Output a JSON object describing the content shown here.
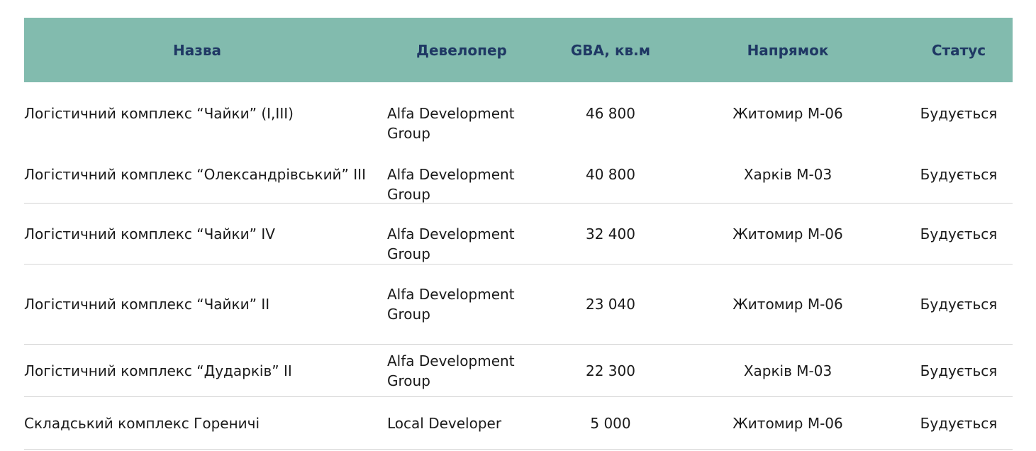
{
  "table": {
    "headers": [
      "Назва",
      "Девелопер",
      "GBA, кв.м",
      "Напрямок",
      "Статус"
    ],
    "rows": [
      {
        "name": "Логістичний комплекс “Чайки” (I,III)",
        "developer": "Alfa Development Group",
        "gba": "46 800",
        "direction": "Житомир М-06",
        "status": "Будується"
      },
      {
        "name": "Логістичний комплекс “Олександрівський” III",
        "developer": "Alfa Development Group",
        "gba": "40 800",
        "direction": "Харків М-03",
        "status": "Будується"
      },
      {
        "name": "Логістичний комплекс “Чайки” IV",
        "developer": "Alfa Development Group",
        "gba": "32 400",
        "direction": "Житомир М-06",
        "status": "Будується"
      },
      {
        "name": "Логістичний комплекс “Чайки” II",
        "developer": "Alfa Development Group",
        "gba": "23 040",
        "direction": "Житомир М-06",
        "status": "Будується"
      },
      {
        "name": "Логістичний комплекс “Дударків” II",
        "developer": "Alfa Development Group",
        "gba": "22 300",
        "direction": "Харків М-03",
        "status": "Будується"
      },
      {
        "name": "Складський комплекс Гореничі",
        "developer": "Local Developer",
        "gba": "5 000",
        "direction": "Житомир М-06",
        "status": "Будується"
      }
    ]
  },
  "colors": {
    "header_bg": "#82bbae",
    "header_text": "#1f3864",
    "row_border": "#d4d4d4"
  }
}
